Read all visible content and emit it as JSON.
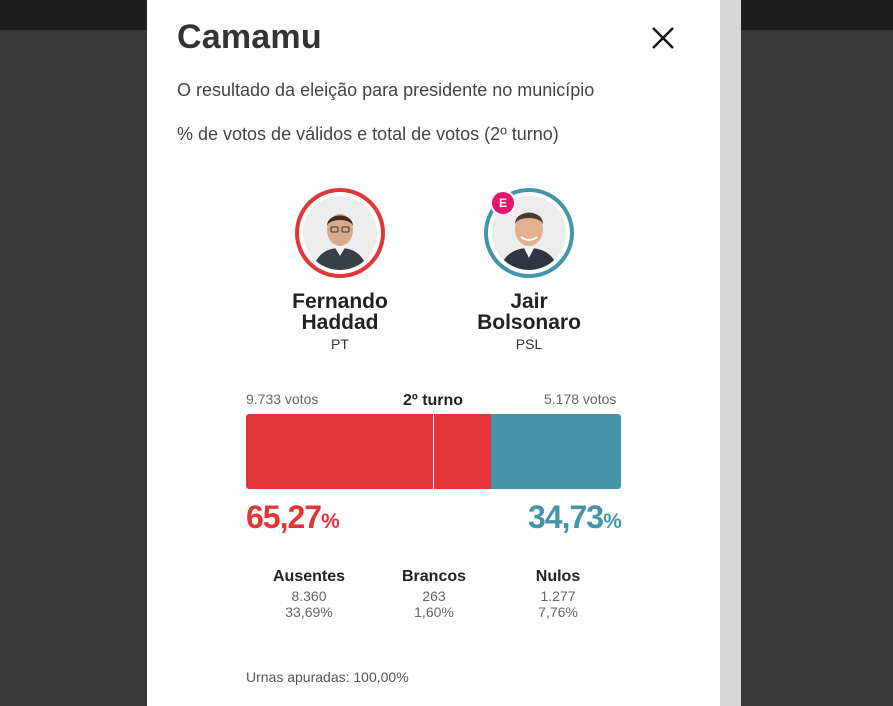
{
  "modal": {
    "title": "Camamu",
    "subtitle": "O resultado da eleição para presidente no município",
    "subtitle2": "% de votos de válidos e total de votos (2º turno)"
  },
  "candidates": [
    {
      "name_line1": "Fernando",
      "name_line2": "Haddad",
      "party": "PT",
      "votes": "9.733 votos",
      "percent": "65,27",
      "percent_symbol": "%",
      "color": "#e23537",
      "share": 0.6527
    },
    {
      "name_line1": "Jair",
      "name_line2": "Bolsonaro",
      "party": "PSL",
      "votes": "5.178 votos",
      "percent": "34,73",
      "percent_symbol": "%",
      "color": "#4595a8",
      "share": 0.3473,
      "elected_badge": "E"
    }
  ],
  "round_label": "2º turno",
  "stats": {
    "ausentes": {
      "label": "Ausentes",
      "value": "8.360",
      "pct": "33,69%"
    },
    "brancos": {
      "label": "Brancos",
      "value": "263",
      "pct": "1,60%"
    },
    "nulos": {
      "label": "Nulos",
      "value": "1.277",
      "pct": "7,76%"
    }
  },
  "footer": {
    "urnas": "Urnas apuradas: 100,00%"
  },
  "icons": {
    "close": "close-icon",
    "elected": "elected-badge"
  },
  "colors": {
    "haddad": "#e23537",
    "bolsonaro": "#4595a8",
    "elected_badge": "#e8136f"
  }
}
